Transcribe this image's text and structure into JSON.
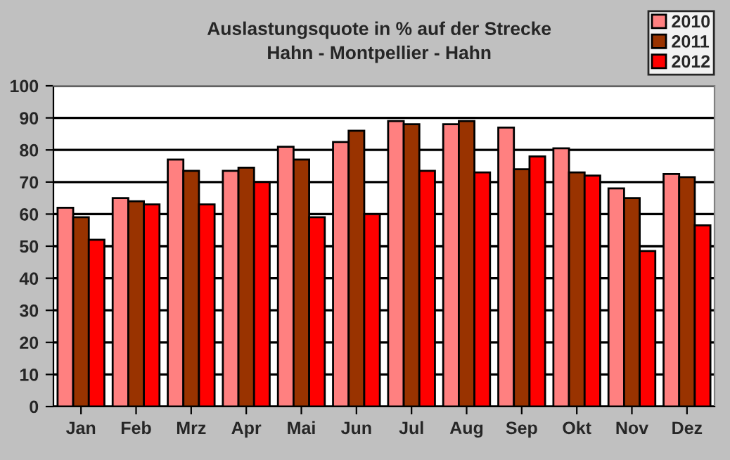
{
  "chart_data": {
    "type": "bar",
    "title": "Auslastungsquote in % auf der Strecke\nHahn - Montpellier - Hahn",
    "categories": [
      "Jan",
      "Feb",
      "Mrz",
      "Apr",
      "Mai",
      "Jun",
      "Jul",
      "Aug",
      "Sep",
      "Okt",
      "Nov",
      "Dez"
    ],
    "series": [
      {
        "name": "2010",
        "color": "#ff8080",
        "values": [
          62,
          65,
          77,
          73.5,
          81,
          82.5,
          89,
          88,
          87,
          80.5,
          68,
          72.5
        ]
      },
      {
        "name": "2011",
        "color": "#993300",
        "values": [
          59,
          64,
          73.5,
          74.5,
          77,
          86,
          88,
          89,
          74,
          73,
          65,
          71.5
        ]
      },
      {
        "name": "2012",
        "color": "#ff0000",
        "values": [
          52,
          63,
          63,
          70,
          59,
          60,
          73.5,
          73,
          78,
          72,
          48.5,
          56.5
        ]
      }
    ],
    "ylim": [
      0,
      100
    ],
    "yticks": [
      0,
      10,
      20,
      30,
      40,
      50,
      60,
      70,
      80,
      90,
      100
    ],
    "grid": "y",
    "legend": "top right"
  }
}
